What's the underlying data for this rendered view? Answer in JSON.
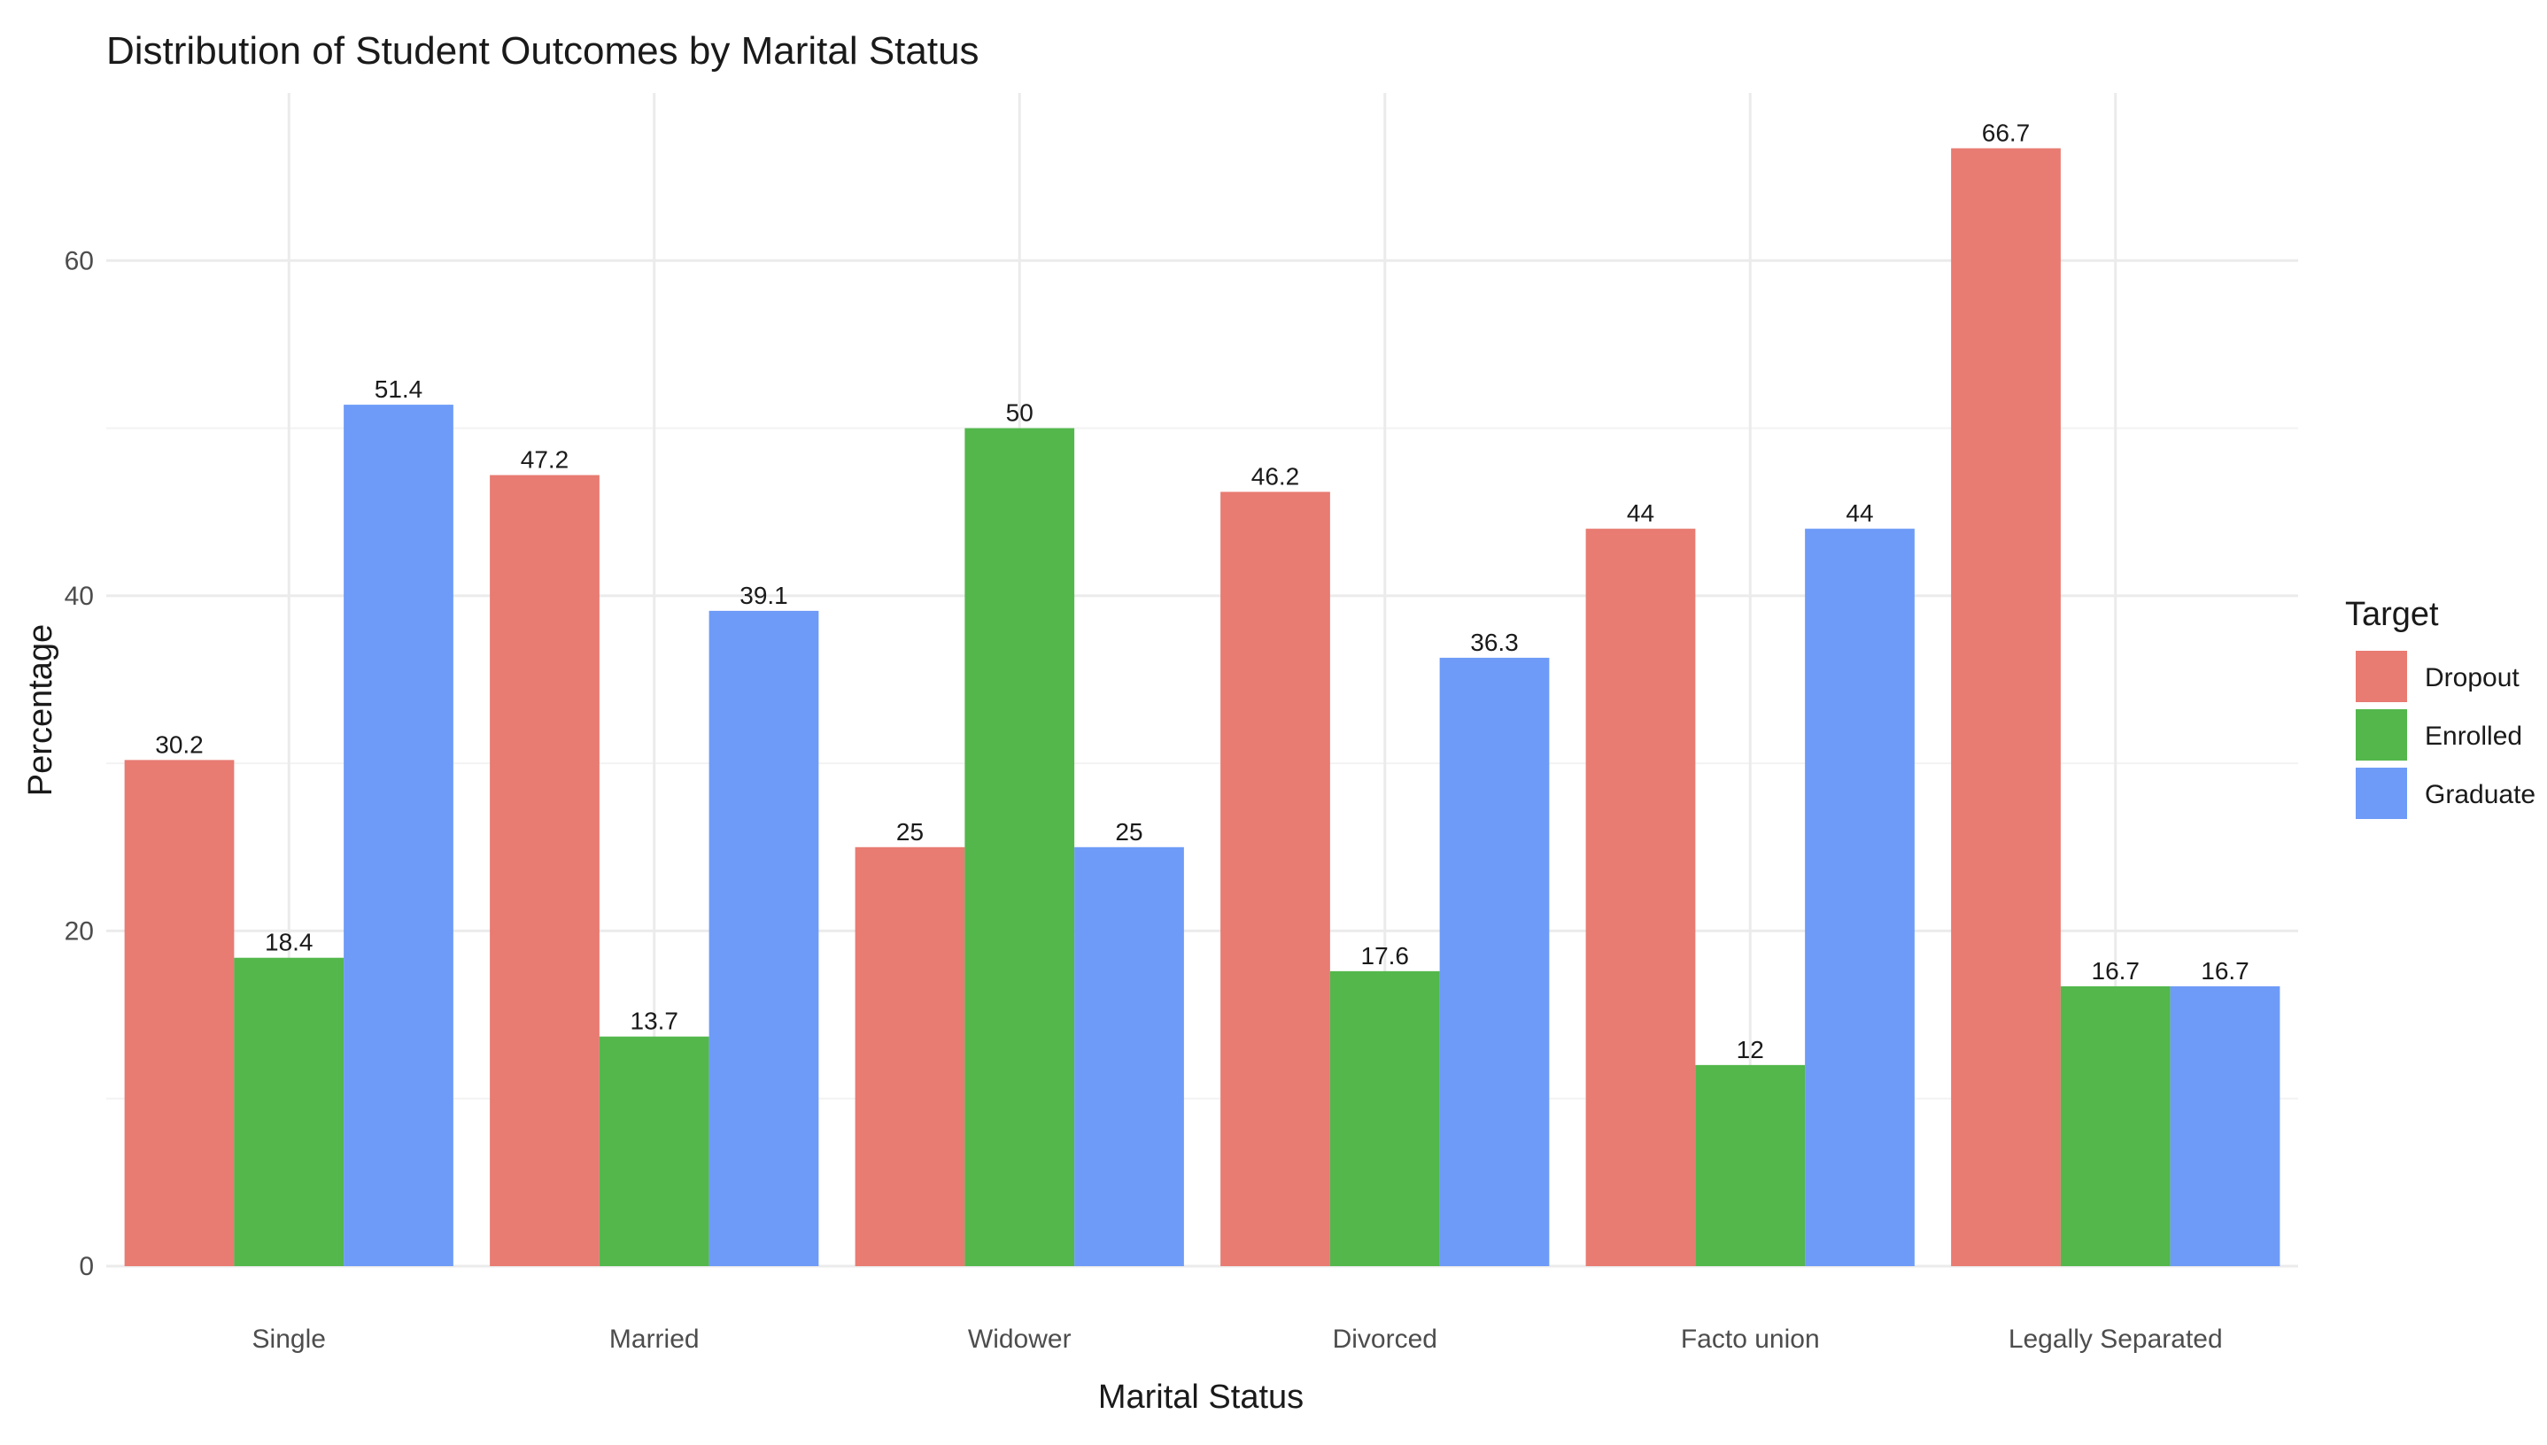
{
  "chart_data": {
    "type": "bar",
    "title": "Distribution of Student Outcomes by Marital Status",
    "xlabel": "Marital Status",
    "ylabel": "Percentage",
    "categories": [
      "Single",
      "Married",
      "Widower",
      "Divorced",
      "Facto union",
      "Legally Separated"
    ],
    "series": [
      {
        "name": "Dropout",
        "color": "#e87b72",
        "values": [
          30.2,
          47.2,
          25,
          46.2,
          44,
          66.7
        ]
      },
      {
        "name": "Enrolled",
        "color": "#53b74c",
        "values": [
          18.4,
          13.7,
          50,
          17.6,
          12,
          16.7
        ]
      },
      {
        "name": "Graduate",
        "color": "#6e9bf7",
        "values": [
          51.4,
          39.1,
          25,
          36.3,
          44,
          16.7
        ]
      }
    ],
    "ylim": [
      0,
      70
    ],
    "yticks": [
      0,
      20,
      40,
      60
    ],
    "grid": true,
    "legend": {
      "title": "Target",
      "position": "right"
    }
  }
}
